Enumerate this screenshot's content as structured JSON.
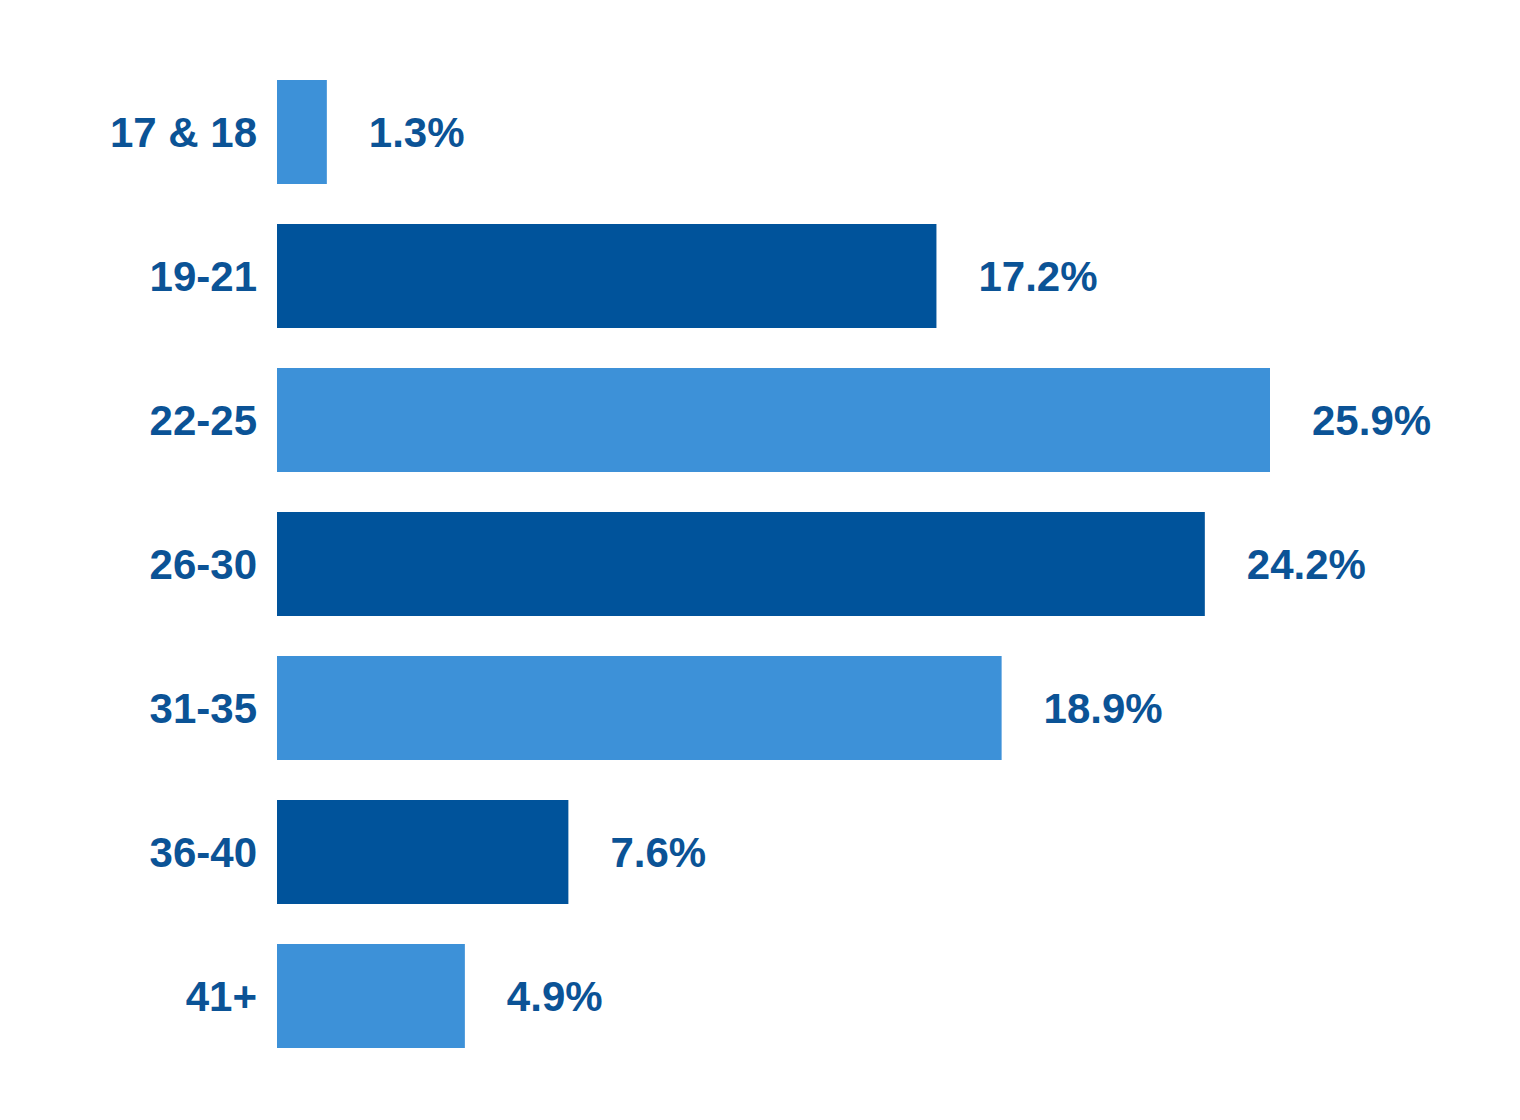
{
  "chart_data": {
    "type": "bar",
    "orientation": "horizontal",
    "categories": [
      "17 & 18",
      "19-21",
      "22-25",
      "26-30",
      "31-35",
      "36-40",
      "41+"
    ],
    "values": [
      1.3,
      17.2,
      25.9,
      24.2,
      18.9,
      7.6,
      4.9
    ],
    "value_labels": [
      "1.3%",
      "17.2%",
      "25.9%",
      "24.2%",
      "18.9%",
      "7.6%",
      "4.9%"
    ],
    "colors": [
      "#3d91d8",
      "#00539b",
      "#3d91d8",
      "#00539b",
      "#3d91d8",
      "#00539b",
      "#3d91d8"
    ],
    "data_labels": true,
    "tick_labels": "y"
  }
}
